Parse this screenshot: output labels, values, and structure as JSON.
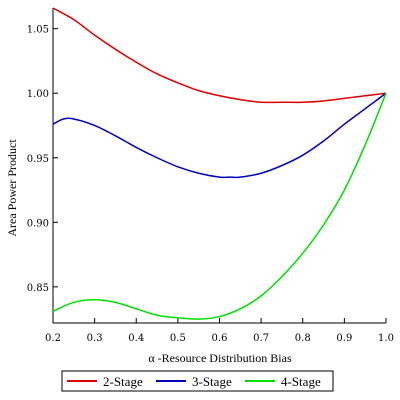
{
  "chart_data": {
    "type": "line",
    "title": "",
    "xlabel": "α -Resource Distribution Bias",
    "ylabel": "Area Power Product",
    "xlim": [
      0.2,
      1.0
    ],
    "ylim": [
      0.822,
      1.066
    ],
    "xticks": [
      0.2,
      0.3,
      0.4,
      0.5,
      0.6,
      0.7,
      0.8,
      0.9,
      1.0
    ],
    "xtick_labels": [
      "0.2",
      "0.3",
      "0.4",
      "0.5",
      "0.6",
      "0.7",
      "0.8",
      "0.9",
      "1.0"
    ],
    "yticks": [
      0.85,
      0.9,
      0.95,
      1.0,
      1.05
    ],
    "ytick_labels": [
      "0.85",
      "0.90",
      "0.95",
      "1.00",
      "1.05"
    ],
    "grid": false,
    "legend_position": "bottom",
    "series": [
      {
        "name": "2-Stage",
        "color": "#dd0000",
        "x": [
          0.2,
          0.25,
          0.3,
          0.35,
          0.4,
          0.45,
          0.5,
          0.55,
          0.6,
          0.65,
          0.7,
          0.75,
          0.8,
          0.85,
          0.9,
          0.95,
          1.0
        ],
        "y": [
          1.066,
          1.057,
          1.045,
          1.034,
          1.024,
          1.015,
          1.008,
          1.002,
          0.998,
          0.995,
          0.993,
          0.993,
          0.993,
          0.994,
          0.996,
          0.998,
          1.0
        ]
      },
      {
        "name": "3-Stage",
        "color": "#0000bb",
        "x": [
          0.2,
          0.225,
          0.25,
          0.3,
          0.35,
          0.4,
          0.45,
          0.5,
          0.55,
          0.6,
          0.625,
          0.65,
          0.7,
          0.75,
          0.8,
          0.85,
          0.9,
          0.95,
          1.0
        ],
        "y": [
          0.976,
          0.98,
          0.98,
          0.975,
          0.967,
          0.958,
          0.95,
          0.943,
          0.938,
          0.935,
          0.935,
          0.935,
          0.938,
          0.944,
          0.952,
          0.963,
          0.976,
          0.988,
          1.0
        ]
      },
      {
        "name": "4-Stage",
        "color": "#00e000",
        "x": [
          0.2,
          0.25,
          0.3,
          0.35,
          0.4,
          0.45,
          0.5,
          0.55,
          0.6,
          0.65,
          0.7,
          0.75,
          0.8,
          0.85,
          0.9,
          0.95,
          1.0
        ],
        "y": [
          0.831,
          0.838,
          0.84,
          0.838,
          0.833,
          0.828,
          0.826,
          0.825,
          0.827,
          0.833,
          0.843,
          0.858,
          0.876,
          0.898,
          0.925,
          0.96,
          1.0
        ]
      }
    ]
  }
}
